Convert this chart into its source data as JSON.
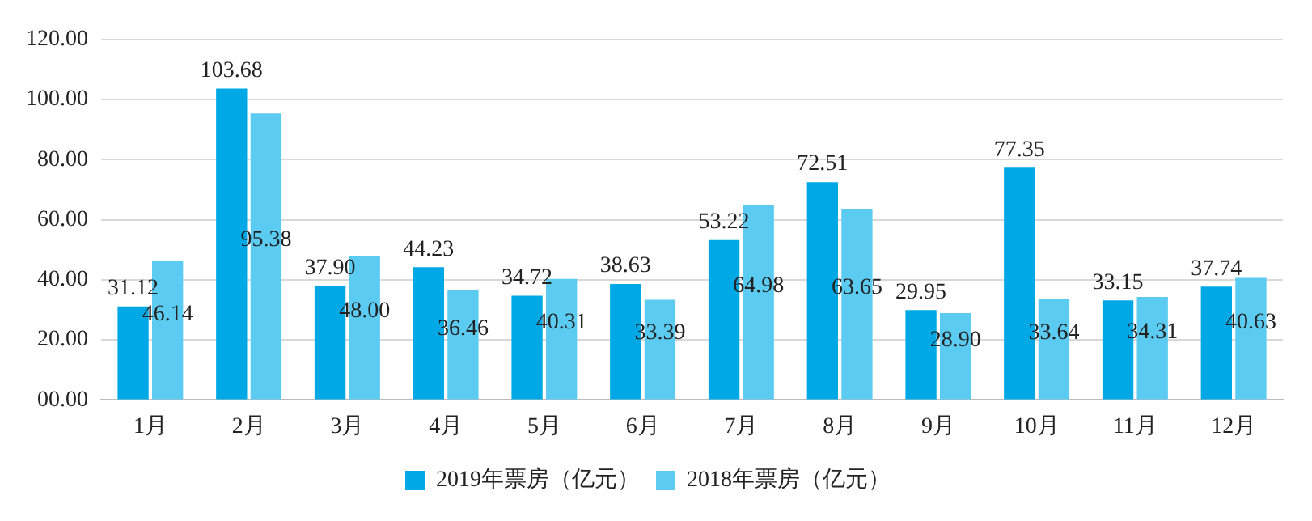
{
  "chart_data": {
    "type": "bar",
    "categories": [
      "1月",
      "2月",
      "3月",
      "4月",
      "5月",
      "6月",
      "7月",
      "8月",
      "9月",
      "10月",
      "11月",
      "12月"
    ],
    "series": [
      {
        "name": "2019年票房（亿元）",
        "color": "#00a9e6",
        "values": [
          31.12,
          103.68,
          37.9,
          44.23,
          34.72,
          38.63,
          53.22,
          72.51,
          29.95,
          77.35,
          33.15,
          37.74
        ],
        "value_labels": [
          "31.12",
          "103.68",
          "37.90",
          "44.23",
          "34.72",
          "38.63",
          "53.22",
          "72.51",
          "29.95",
          "77.35",
          "33.15",
          "37.74"
        ]
      },
      {
        "name": "2018年票房（亿元）",
        "color": "#5ccbf2",
        "values": [
          46.14,
          95.38,
          48.0,
          36.46,
          40.31,
          33.39,
          64.98,
          63.65,
          28.9,
          33.64,
          34.31,
          40.63
        ],
        "value_labels": [
          "46.14",
          "95.38",
          "48.00",
          "36.46",
          "40.31",
          "33.39",
          "64.98",
          "63.65",
          "28.90",
          "33.64",
          "34.31",
          "40.63"
        ]
      }
    ],
    "ylim": [
      0,
      120
    ],
    "yticks": [
      {
        "value": 0,
        "label": "00.00"
      },
      {
        "value": 20,
        "label": "20.00"
      },
      {
        "value": 40,
        "label": "40.00"
      },
      {
        "value": 60,
        "label": "60.00"
      },
      {
        "value": 80,
        "label": "80.00"
      },
      {
        "value": 100,
        "label": "100.00"
      },
      {
        "value": 120,
        "label": "120.00"
      }
    ],
    "grid": "y",
    "legend": "bottom"
  }
}
